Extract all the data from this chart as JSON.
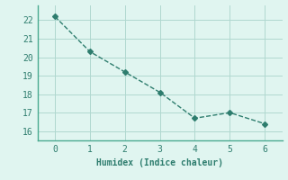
{
  "x": [
    0,
    1,
    2,
    3,
    4,
    5,
    6
  ],
  "y": [
    22.2,
    20.3,
    19.2,
    18.1,
    16.7,
    17.0,
    16.4
  ],
  "line_color": "#2e7d6e",
  "marker": "D",
  "marker_size": 3,
  "background_color": "#e0f5f0",
  "grid_color": "#b0d8d0",
  "xlabel": "Humidex (Indice chaleur)",
  "xlim": [
    -0.5,
    6.5
  ],
  "ylim": [
    15.5,
    22.8
  ],
  "yticks": [
    16,
    17,
    18,
    19,
    20,
    21,
    22
  ],
  "xticks": [
    0,
    1,
    2,
    3,
    4,
    5,
    6
  ],
  "font_color": "#2e7d6e",
  "font_family": "monospace",
  "font_size": 7,
  "xlabel_fontsize": 7,
  "spine_color": "#4aaa90",
  "linewidth": 1.0
}
